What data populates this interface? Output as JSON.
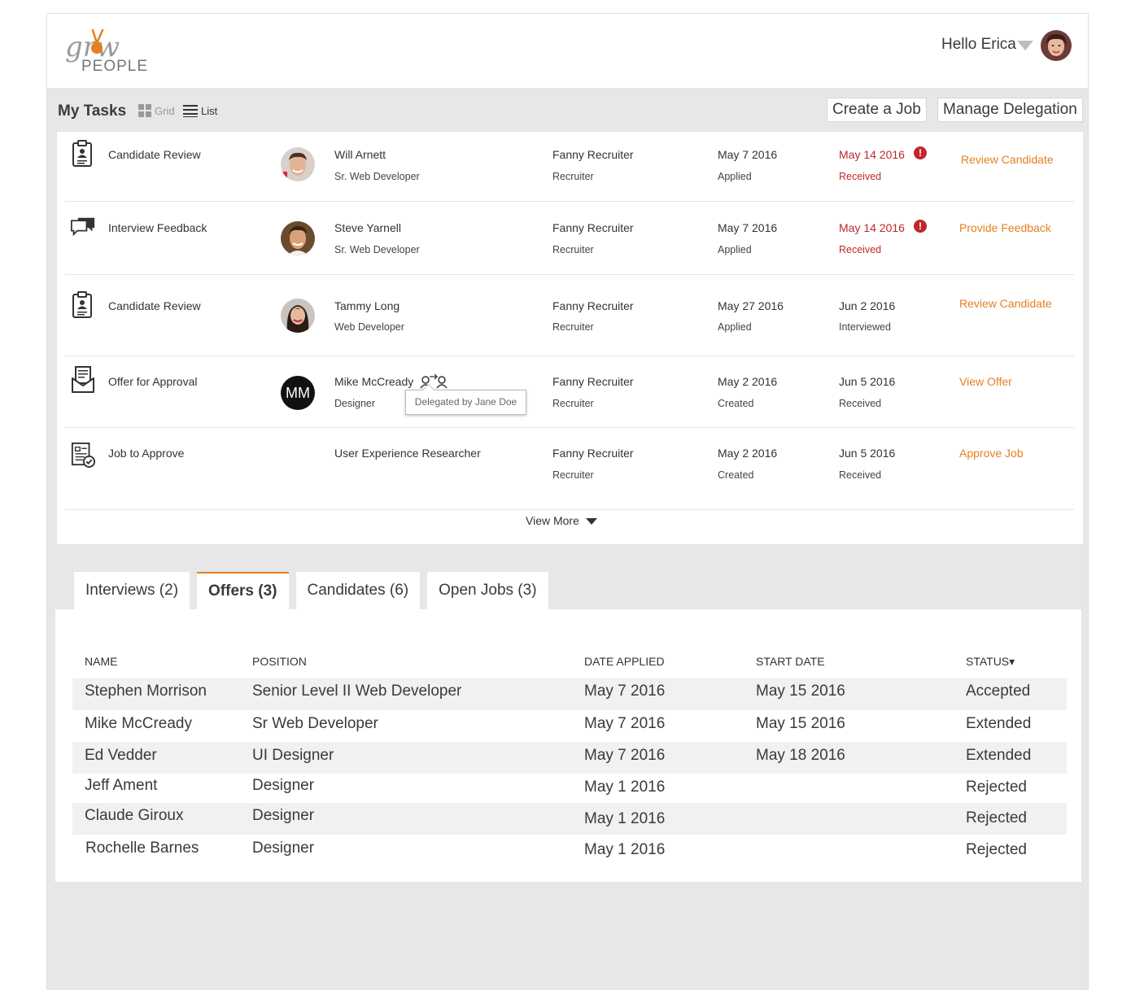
{
  "app": {
    "logo_text_top": "grw",
    "logo_text_bottom": "PEOPLE",
    "greeting": "Hello Erica",
    "accent_color": "#e67e22",
    "alert_color": "#c0272d"
  },
  "toolbar": {
    "title": "My Tasks",
    "grid_label": "Grid",
    "list_label": "List",
    "create_job": "Create a Job",
    "manage_delegation": "Manage Delegation"
  },
  "tasks": [
    {
      "type": "Candidate Review",
      "icon": "clipboard-person-icon",
      "name": "Will Arnett",
      "position": "Sr. Web Developer",
      "owner": "Fanny Recruiter",
      "owner_role": "Recruiter",
      "date1": "May 7 2016",
      "date1_label": "Applied",
      "date2": "May 14 2016",
      "date2_label": "Received",
      "overdue": true,
      "action": "Review Candidate"
    },
    {
      "type": "Interview Feedback",
      "icon": "chat-bubbles-icon",
      "name": "Steve Yarnell",
      "position": "Sr. Web Developer",
      "owner": "Fanny Recruiter",
      "owner_role": "Recruiter",
      "date1": "May 7 2016",
      "date1_label": "Applied",
      "date2": "May 14 2016",
      "date2_label": "Received",
      "overdue": true,
      "action": "Provide Feedback"
    },
    {
      "type": "Candidate Review",
      "icon": "clipboard-person-icon",
      "name": "Tammy Long",
      "position": "Web Developer",
      "owner": "Fanny Recruiter",
      "owner_role": "Recruiter",
      "date1": "May 27 2016",
      "date1_label": "Applied",
      "date2": "Jun 2 2016",
      "date2_label": "Interviewed",
      "overdue": false,
      "action": "Review Candidate"
    },
    {
      "type": "Offer for Approval",
      "icon": "envelope-letter-icon",
      "name": "Mike McCready",
      "initials": "MM",
      "position": "Designer",
      "owner": "Fanny Recruiter",
      "owner_role": "Recruiter",
      "date1": "May 2 2016",
      "date1_label": "Created",
      "date2": "Jun 5 2016",
      "date2_label": "Received",
      "overdue": false,
      "action": "View Offer",
      "tooltip": "Delegated by Jane Doe"
    },
    {
      "type": "Job to Approve",
      "icon": "document-check-icon",
      "name": "User Experience Researcher",
      "owner": "Fanny Recruiter",
      "owner_role": "Recruiter",
      "date1": "May 2 2016",
      "date1_label": "Created",
      "date2": "Jun 5 2016",
      "date2_label": "Received",
      "overdue": false,
      "action": "Approve Job"
    }
  ],
  "view_more": "View More",
  "tabs": [
    {
      "label": "Interviews (2)"
    },
    {
      "label": "Offers (3)"
    },
    {
      "label": "Candidates (6)"
    },
    {
      "label": "Open Jobs (3)"
    }
  ],
  "offers": {
    "headers": {
      "name": "NAME",
      "position": "POSITION",
      "date_applied": "DATE APPLIED",
      "start_date": "START DATE",
      "status": "STATUS▾"
    },
    "rows": [
      {
        "name": "Stephen Morrison",
        "position": "Senior Level II Web Developer",
        "date_applied": "May 7 2016",
        "start_date": "May 15 2016",
        "status": "Accepted"
      },
      {
        "name": "Mike McCready",
        "position": "Sr Web Developer",
        "date_applied": "May 7 2016",
        "start_date": "May 15 2016",
        "status": "Extended"
      },
      {
        "name": "Ed Vedder",
        "position": "UI Designer",
        "date_applied": "May 7 2016",
        "start_date": "May 18 2016",
        "status": "Extended"
      },
      {
        "name": "Jeff Ament",
        "position": "Designer",
        "date_applied": "May 1 2016",
        "start_date": "",
        "status": "Rejected"
      },
      {
        "name": "Claude Giroux",
        "position": "Designer",
        "date_applied": "May 1 2016",
        "start_date": "",
        "status": "Rejected"
      },
      {
        "name": "Rochelle Barnes",
        "position": "Designer",
        "date_applied": "May 1 2016",
        "start_date": "",
        "status": "Rejected"
      }
    ]
  }
}
